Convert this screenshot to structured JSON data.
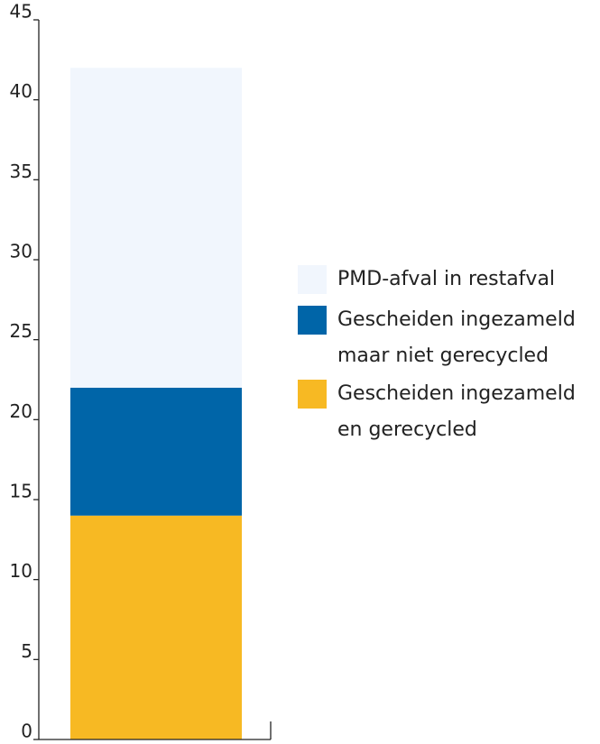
{
  "chart_data": {
    "type": "stacked_bar",
    "categories": [
      null
    ],
    "series": [
      {
        "name": "Gescheiden ingezameld en gerecycled",
        "color": "#f7b923",
        "values": [
          14
        ]
      },
      {
        "name": "Gescheiden ingezameld maar niet gerecycled",
        "color": "#0065a8",
        "values": [
          8
        ]
      },
      {
        "name": "PMD-afval in restafval",
        "color": "#f1f6fd",
        "values": [
          20
        ]
      }
    ],
    "ylim": [
      0,
      45
    ],
    "yticks": [
      0,
      5,
      10,
      15,
      20,
      25,
      30,
      35,
      40,
      45
    ],
    "legend": "right"
  }
}
